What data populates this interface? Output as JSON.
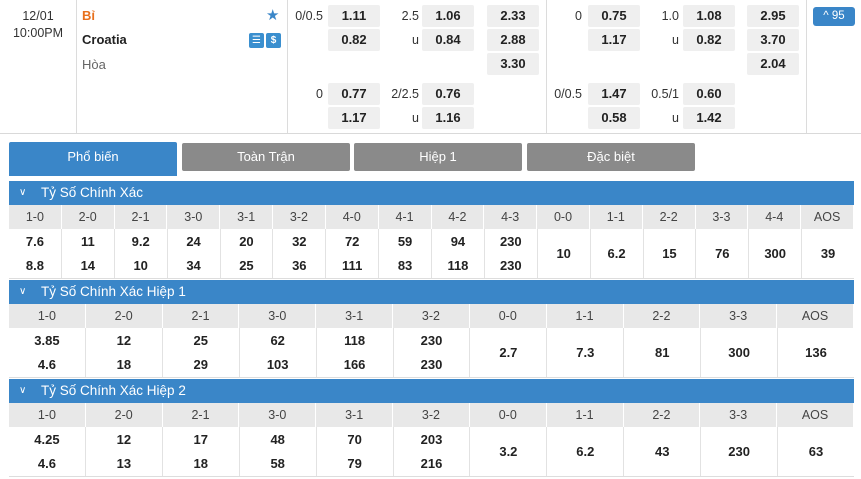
{
  "match": {
    "date": "12/01",
    "time": "10:00PM",
    "home": "Bỉ",
    "away": "Croatia",
    "draw": "Hòa",
    "star_icon": "star-icon",
    "badges": [
      "list-icon",
      "$"
    ],
    "more_label": "^ 95"
  },
  "odds": {
    "ft_hdp_top": {
      "label": "0/0.5",
      "home": "1.11",
      "away": "0.82"
    },
    "ft_ou_top": {
      "label": "2.5",
      "under_label": "u",
      "over": "1.06",
      "under": "0.84"
    },
    "ft_1x2": [
      "2.33",
      "2.88",
      "3.30"
    ],
    "ft_hdp_bot": {
      "label": "0",
      "home": "0.77",
      "away": "1.17"
    },
    "ft_ou_bot": {
      "label": "2/2.5",
      "under_label": "u",
      "over": "0.76",
      "under": "1.16"
    },
    "h1_hdp_top": {
      "label": "0",
      "home": "0.75",
      "away": "1.17"
    },
    "h1_ou_top": {
      "label": "1.0",
      "under_label": "u",
      "over": "1.08",
      "under": "0.82"
    },
    "h1_1x2": [
      "2.95",
      "3.70",
      "2.04"
    ],
    "h1_hdp_bot": {
      "label": "0/0.5",
      "home": "1.47",
      "away": "0.58"
    },
    "h1_ou_bot": {
      "label": "0.5/1",
      "under_label": "u",
      "over": "0.60",
      "under": "1.42"
    }
  },
  "tabs": [
    "Phổ biến",
    "Toàn Trận",
    "Hiệp 1",
    "Đặc biệt"
  ],
  "sections": [
    {
      "title": "Tỷ Số Chính Xác",
      "headers": [
        "1-0",
        "2-0",
        "2-1",
        "3-0",
        "3-1",
        "3-2",
        "4-0",
        "4-1",
        "4-2",
        "4-3",
        "0-0",
        "1-1",
        "2-2",
        "3-3",
        "4-4",
        "AOS"
      ],
      "values": [
        [
          "7.6",
          "8.8"
        ],
        [
          "11",
          "14"
        ],
        [
          "9.2",
          "10"
        ],
        [
          "24",
          "34"
        ],
        [
          "20",
          "25"
        ],
        [
          "32",
          "36"
        ],
        [
          "72",
          "111"
        ],
        [
          "59",
          "83"
        ],
        [
          "94",
          "118"
        ],
        [
          "230",
          "230"
        ],
        [
          "10"
        ],
        [
          "6.2"
        ],
        [
          "15"
        ],
        [
          "76"
        ],
        [
          "300"
        ],
        [
          "39"
        ]
      ]
    },
    {
      "title": "Tỷ Số Chính Xác Hiệp 1",
      "headers": [
        "1-0",
        "2-0",
        "2-1",
        "3-0",
        "3-1",
        "3-2",
        "0-0",
        "1-1",
        "2-2",
        "3-3",
        "AOS"
      ],
      "values": [
        [
          "3.85",
          "4.6"
        ],
        [
          "12",
          "18"
        ],
        [
          "25",
          "29"
        ],
        [
          "62",
          "103"
        ],
        [
          "118",
          "166"
        ],
        [
          "230",
          "230"
        ],
        [
          "2.7"
        ],
        [
          "7.3"
        ],
        [
          "81"
        ],
        [
          "300"
        ],
        [
          "136"
        ]
      ]
    },
    {
      "title": "Tỷ Số Chính Xác Hiệp 2",
      "headers": [
        "1-0",
        "2-0",
        "2-1",
        "3-0",
        "3-1",
        "3-2",
        "0-0",
        "1-1",
        "2-2",
        "3-3",
        "AOS"
      ],
      "values": [
        [
          "4.25",
          "4.6"
        ],
        [
          "12",
          "13"
        ],
        [
          "17",
          "18"
        ],
        [
          "48",
          "58"
        ],
        [
          "70",
          "79"
        ],
        [
          "203",
          "216"
        ],
        [
          "3.2"
        ],
        [
          "6.2"
        ],
        [
          "43"
        ],
        [
          "230"
        ],
        [
          "63"
        ]
      ]
    }
  ]
}
